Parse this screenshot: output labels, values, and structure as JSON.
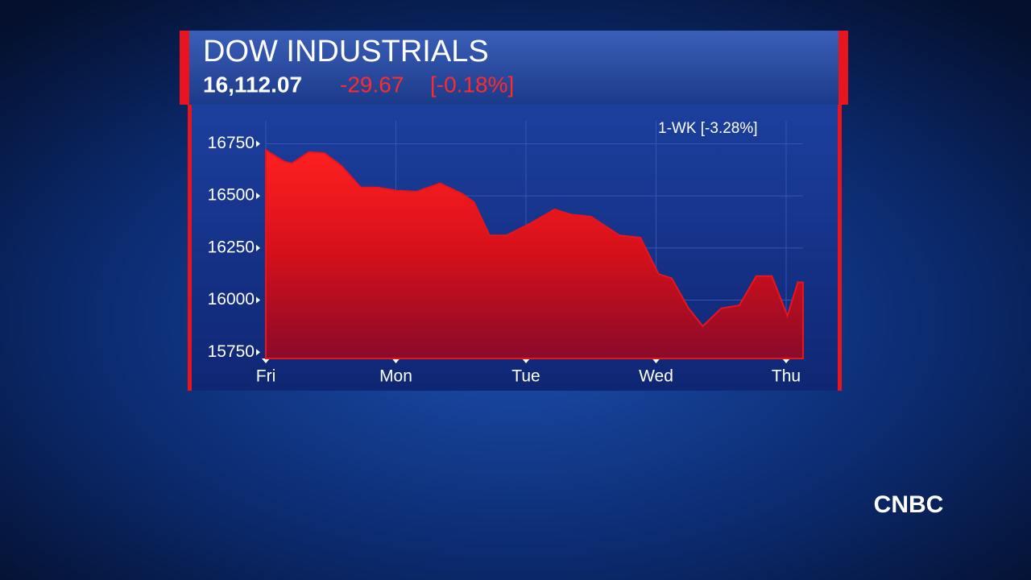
{
  "chart_data": {
    "type": "area",
    "title": "DOW INDUSTRIALS",
    "last_value": "16,112.07",
    "change": "-29.67",
    "change_percent": "[-0.18%]",
    "annotation": "1-WK  [-3.28%]",
    "network": "CNBC",
    "x": [
      0,
      0.14,
      0.2,
      0.33,
      0.45,
      0.58,
      0.73,
      0.86,
      1.01,
      1.16,
      1.34,
      1.51,
      1.6,
      1.72,
      1.85,
      2.04,
      2.22,
      2.35,
      2.5,
      2.72,
      2.88,
      3.02,
      3.12,
      3.25,
      3.36,
      3.5,
      3.64,
      3.77,
      3.89,
      4.01,
      4.09,
      4.13
    ],
    "series": [
      {
        "color": "#e8141e",
        "values": [
          16720,
          16665,
          16655,
          16710,
          16705,
          16645,
          16540,
          16540,
          16525,
          16520,
          16560,
          16510,
          16470,
          16310,
          16310,
          16370,
          16435,
          16410,
          16400,
          16310,
          16300,
          16125,
          16105,
          15960,
          15875,
          15960,
          15975,
          16115,
          16115,
          15925,
          16085,
          16085
        ]
      }
    ],
    "xlim": [
      0,
      4.13
    ],
    "xticks": [
      {
        "value": 0,
        "label": "Fri"
      },
      {
        "value": 1,
        "label": "Mon"
      },
      {
        "value": 2,
        "label": "Tue"
      },
      {
        "value": 3,
        "label": "Wed"
      },
      {
        "value": 4,
        "label": "Thu"
      }
    ],
    "ylim": [
      15720,
      16860
    ],
    "yticks": [
      15750,
      16000,
      16250,
      16500,
      16750
    ],
    "grid": true
  }
}
